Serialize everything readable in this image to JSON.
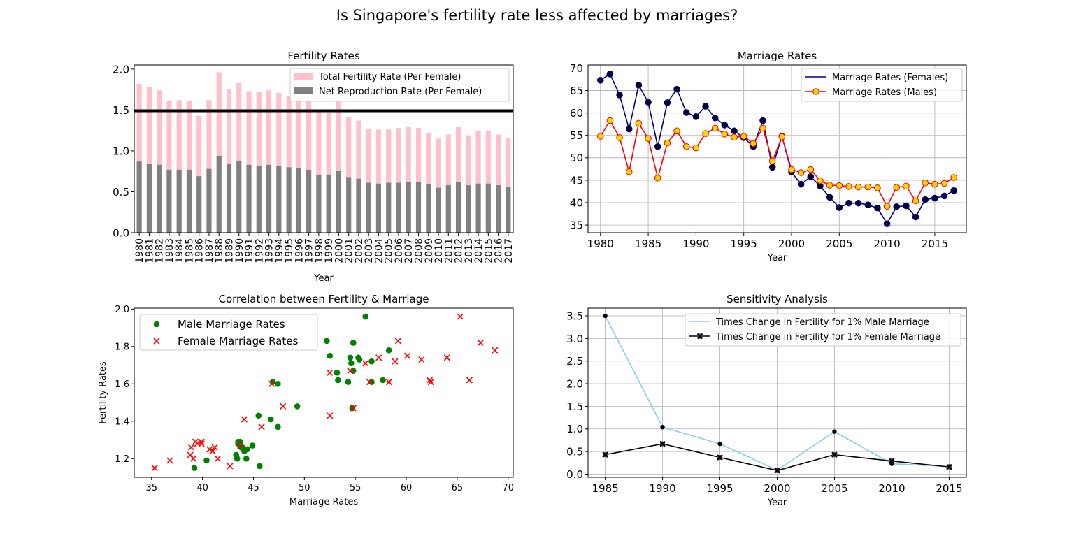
{
  "figure": {
    "title": "Is Singapore's fertility rate less affected by marriages?"
  },
  "chart_data": [
    {
      "type": "bar",
      "title": "Fertility Rates",
      "xlabel": "Year",
      "ylabel": "",
      "ylim": [
        0,
        2.05
      ],
      "yticks": [
        "0.0",
        "0.5",
        "1.0",
        "1.5",
        "2.0"
      ],
      "categories": [
        "1980",
        "1981",
        "1982",
        "1983",
        "1984",
        "1985",
        "1986",
        "1987",
        "1988",
        "1989",
        "1990",
        "1991",
        "1992",
        "1993",
        "1994",
        "1995",
        "1996",
        "1997",
        "1998",
        "1999",
        "2000",
        "2001",
        "2002",
        "2003",
        "2004",
        "2005",
        "2006",
        "2007",
        "2008",
        "2009",
        "2010",
        "2011",
        "2012",
        "2013",
        "2014",
        "2015",
        "2016",
        "2017"
      ],
      "series": [
        {
          "name": "Total Fertility Rate (Per Female)",
          "color": "#ffc0cb",
          "values": [
            1.82,
            1.78,
            1.74,
            1.61,
            1.62,
            1.61,
            1.43,
            1.62,
            1.96,
            1.75,
            1.83,
            1.73,
            1.72,
            1.74,
            1.71,
            1.67,
            1.66,
            1.61,
            1.48,
            1.47,
            1.6,
            1.41,
            1.37,
            1.27,
            1.26,
            1.26,
            1.28,
            1.29,
            1.28,
            1.22,
            1.15,
            1.2,
            1.29,
            1.19,
            1.25,
            1.24,
            1.2,
            1.16
          ]
        },
        {
          "name": "Net Reproduction Rate (Per Female)",
          "color": "#808080",
          "values": [
            0.87,
            0.84,
            0.83,
            0.77,
            0.77,
            0.77,
            0.69,
            0.78,
            0.94,
            0.84,
            0.88,
            0.83,
            0.82,
            0.83,
            0.82,
            0.8,
            0.79,
            0.77,
            0.71,
            0.71,
            0.76,
            0.68,
            0.66,
            0.61,
            0.6,
            0.61,
            0.61,
            0.62,
            0.62,
            0.59,
            0.55,
            0.58,
            0.62,
            0.58,
            0.6,
            0.6,
            0.58,
            0.56
          ]
        }
      ],
      "reference_line": {
        "y": 1.49,
        "color": "#000000"
      },
      "legend": "top-right"
    },
    {
      "type": "line",
      "title": "Marriage Rates",
      "xlabel": "Year",
      "ylabel": "",
      "xlim": [
        1978.7,
        2018.3
      ],
      "ylim": [
        33.3,
        70.7
      ],
      "xticks": [
        1980,
        1985,
        1990,
        1995,
        2000,
        2005,
        2010,
        2015
      ],
      "yticks": [
        35,
        40,
        45,
        50,
        55,
        60,
        65,
        70
      ],
      "grid": true,
      "legend": "top-right",
      "x": [
        1980,
        1981,
        1982,
        1983,
        1984,
        1985,
        1986,
        1987,
        1988,
        1989,
        1990,
        1991,
        1992,
        1993,
        1994,
        1995,
        1996,
        1997,
        1998,
        1999,
        2000,
        2001,
        2002,
        2003,
        2004,
        2005,
        2006,
        2007,
        2008,
        2009,
        2010,
        2011,
        2012,
        2013,
        2014,
        2015,
        2016,
        2017
      ],
      "series": [
        {
          "name": "Marriage Rates (Females)",
          "color": "#000080",
          "marker_fill": "#000033",
          "values": [
            67.3,
            68.7,
            64.0,
            56.4,
            66.2,
            62.4,
            52.5,
            62.3,
            65.3,
            60.1,
            59.2,
            61.5,
            58.9,
            57.3,
            56.0,
            54.5,
            52.5,
            58.3,
            47.9,
            54.8,
            46.8,
            44.1,
            45.8,
            43.7,
            41.2,
            38.9,
            39.9,
            39.9,
            39.5,
            38.8,
            35.3,
            39.1,
            39.3,
            36.8,
            40.7,
            41.0,
            41.5,
            42.7
          ]
        },
        {
          "name": "Marriage Rates (Males)",
          "color": "#ff0000",
          "marker_fill": "#ffd700",
          "values": [
            54.8,
            58.3,
            54.5,
            46.9,
            57.7,
            54.3,
            45.5,
            53.3,
            56.0,
            52.5,
            52.2,
            55.4,
            56.6,
            55.3,
            54.6,
            54.8,
            53.2,
            56.6,
            49.3,
            54.7,
            47.4,
            46.7,
            47.4,
            44.9,
            43.9,
            43.8,
            43.6,
            43.5,
            43.5,
            43.3,
            39.2,
            43.4,
            43.7,
            40.4,
            44.4,
            44.1,
            44.3,
            45.6
          ]
        }
      ]
    },
    {
      "type": "scatter",
      "title": "Correlation between Fertility & Marriage",
      "xlabel": "Marriage Rates",
      "ylabel": "Fertility Rates",
      "xlim": [
        33.3,
        70.5
      ],
      "ylim": [
        1.1,
        2.005
      ],
      "xticks": [
        35,
        40,
        45,
        50,
        55,
        60,
        65,
        70
      ],
      "yticks": [
        "1.2",
        "1.4",
        "1.6",
        "1.8",
        "2.0"
      ],
      "legend": "top-left",
      "series": [
        {
          "name": "Male Marriage Rates",
          "color": "#008000",
          "marker": "circle",
          "points": [
            [
              54.8,
              1.82
            ],
            [
              58.3,
              1.78
            ],
            [
              54.5,
              1.74
            ],
            [
              46.9,
              1.61
            ],
            [
              57.7,
              1.62
            ],
            [
              54.3,
              1.61
            ],
            [
              45.5,
              1.43
            ],
            [
              53.3,
              1.62
            ],
            [
              56.0,
              1.96
            ],
            [
              52.5,
              1.75
            ],
            [
              52.2,
              1.83
            ],
            [
              55.4,
              1.73
            ],
            [
              56.6,
              1.72
            ],
            [
              55.3,
              1.74
            ],
            [
              54.6,
              1.71
            ],
            [
              54.8,
              1.67
            ],
            [
              53.2,
              1.66
            ],
            [
              56.6,
              1.61
            ],
            [
              49.3,
              1.48
            ],
            [
              54.7,
              1.47
            ],
            [
              47.4,
              1.6
            ],
            [
              46.7,
              1.41
            ],
            [
              47.4,
              1.37
            ],
            [
              44.9,
              1.27
            ],
            [
              43.9,
              1.26
            ],
            [
              43.8,
              1.26
            ],
            [
              43.6,
              1.28
            ],
            [
              43.5,
              1.29
            ],
            [
              43.5,
              1.28
            ],
            [
              43.3,
              1.22
            ],
            [
              39.2,
              1.15
            ],
            [
              43.4,
              1.2
            ],
            [
              43.7,
              1.29
            ],
            [
              40.4,
              1.19
            ],
            [
              44.4,
              1.25
            ],
            [
              44.1,
              1.24
            ],
            [
              44.3,
              1.2
            ],
            [
              45.6,
              1.16
            ]
          ]
        },
        {
          "name": "Female Marriage Rates",
          "color": "#ff0000",
          "marker": "x",
          "points": [
            [
              67.3,
              1.82
            ],
            [
              68.7,
              1.78
            ],
            [
              64.0,
              1.74
            ],
            [
              56.4,
              1.61
            ],
            [
              66.2,
              1.62
            ],
            [
              62.4,
              1.61
            ],
            [
              52.5,
              1.43
            ],
            [
              62.3,
              1.62
            ],
            [
              65.3,
              1.96
            ],
            [
              60.1,
              1.75
            ],
            [
              59.2,
              1.83
            ],
            [
              61.5,
              1.73
            ],
            [
              58.9,
              1.72
            ],
            [
              57.3,
              1.74
            ],
            [
              56.0,
              1.71
            ],
            [
              54.5,
              1.67
            ],
            [
              52.5,
              1.66
            ],
            [
              58.3,
              1.61
            ],
            [
              47.9,
              1.48
            ],
            [
              54.8,
              1.47
            ],
            [
              46.8,
              1.6
            ],
            [
              44.1,
              1.41
            ],
            [
              45.8,
              1.37
            ],
            [
              43.7,
              1.27
            ],
            [
              41.2,
              1.26
            ],
            [
              38.9,
              1.26
            ],
            [
              39.9,
              1.28
            ],
            [
              39.9,
              1.29
            ],
            [
              39.5,
              1.28
            ],
            [
              38.8,
              1.22
            ],
            [
              35.3,
              1.15
            ],
            [
              39.1,
              1.2
            ],
            [
              39.3,
              1.29
            ],
            [
              36.8,
              1.19
            ],
            [
              40.7,
              1.25
            ],
            [
              41.0,
              1.24
            ],
            [
              41.5,
              1.2
            ],
            [
              42.7,
              1.16
            ]
          ]
        }
      ]
    },
    {
      "type": "line",
      "title": "Sensitivity Analysis",
      "xlabel": "Year",
      "ylabel": "",
      "xlim": [
        1983.5,
        2016.5
      ],
      "ylim": [
        -0.07,
        3.67
      ],
      "xticks": [
        1985,
        1990,
        1995,
        2000,
        2005,
        2010,
        2015
      ],
      "yticks": [
        "0.0",
        "0.5",
        "1.0",
        "1.5",
        "2.0",
        "2.5",
        "3.0",
        "3.5"
      ],
      "grid": true,
      "legend": "top-right",
      "x": [
        1985,
        1990,
        1995,
        2000,
        2005,
        2010,
        2015
      ],
      "series": [
        {
          "name": "Times Change in Fertility for 1% Male Marriage",
          "color": "#87ceeb",
          "marker": "dot",
          "values": [
            3.5,
            1.04,
            0.67,
            0.09,
            0.94,
            0.23,
            0.17
          ]
        },
        {
          "name": "Times Change in Fertility for 1% Female Marriage",
          "color": "#000000",
          "marker": "x-filled",
          "values": [
            0.43,
            0.67,
            0.37,
            0.08,
            0.43,
            0.29,
            0.16
          ]
        }
      ]
    }
  ]
}
